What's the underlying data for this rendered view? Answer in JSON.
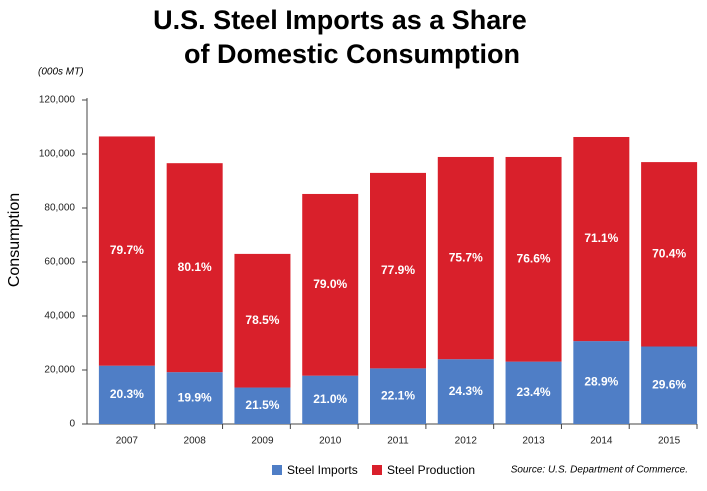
{
  "chart_data": {
    "type": "stacked_bar",
    "title": "U.S. Steel Imports as a Share",
    "subtitle": "of Domestic Consumption",
    "unit_note": "(000s MT)",
    "y_axis_label": "Consumption",
    "source": "Source: U.S. Department of Commerce.",
    "categories": [
      "2007",
      "2008",
      "2009",
      "2010",
      "2011",
      "2012",
      "2013",
      "2014",
      "2015"
    ],
    "series": [
      {
        "name": "Steel Imports",
        "color": "#4f7ec6",
        "values": [
          21600,
          19200,
          13500,
          17900,
          20600,
          24000,
          23100,
          30700,
          28700
        ],
        "share_labels": [
          "20.3%",
          "19.9%",
          "21.5%",
          "21.0%",
          "22.1%",
          "24.3%",
          "23.4%",
          "28.9%",
          "29.6%"
        ]
      },
      {
        "name": "Steel Production",
        "color": "#d9202b",
        "values": [
          84900,
          77400,
          49500,
          67300,
          72400,
          74900,
          75800,
          75600,
          68300
        ],
        "share_labels": [
          "79.7%",
          "80.1%",
          "78.5%",
          "79.0%",
          "77.9%",
          "75.7%",
          "76.6%",
          "71.1%",
          "70.4%"
        ]
      }
    ],
    "ylim": [
      0,
      120000
    ],
    "yticks": [
      0,
      {
        "value": 20000,
        "label": "20,000"
      },
      {
        "value": 40000,
        "label": "40,000"
      },
      {
        "value": 60000,
        "label": "60,000"
      },
      {
        "value": 80000,
        "label": "80,000"
      },
      {
        "value": 100000,
        "label": "100,000"
      },
      {
        "value": 120000,
        "label": "120,000"
      }
    ],
    "grid": false,
    "legend": "bottom"
  }
}
